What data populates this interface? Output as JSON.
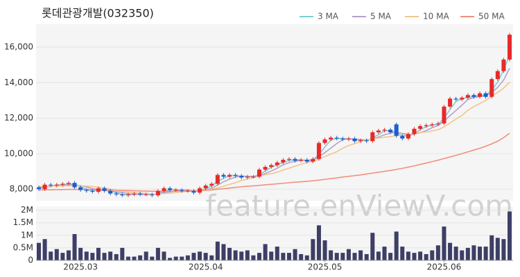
{
  "chart_data": [
    {
      "type": "candlestick",
      "title": "롯데관광개발(032350)",
      "watermark": "feature.enViewV.com",
      "up_color": "#e8292a",
      "down_color": "#1c5fcc",
      "legend": "top-right",
      "grid": true,
      "ylim": [
        7340,
        17290
      ],
      "yticks": [
        {
          "value": 8000,
          "label": "8,000"
        },
        {
          "value": 10000,
          "label": "10,000"
        },
        {
          "value": 12000,
          "label": "12,000"
        },
        {
          "value": 14000,
          "label": "14,000"
        },
        {
          "value": 16000,
          "label": "16,000"
        }
      ],
      "categories": [
        null,
        null,
        null,
        null,
        null,
        null,
        null,
        "2025.03",
        null,
        null,
        null,
        null,
        null,
        null,
        null,
        null,
        null,
        null,
        null,
        null,
        null,
        null,
        null,
        null,
        null,
        null,
        null,
        null,
        "2025.04",
        null,
        null,
        null,
        null,
        null,
        null,
        null,
        null,
        null,
        null,
        null,
        null,
        null,
        null,
        null,
        null,
        null,
        null,
        null,
        "2025.05",
        null,
        null,
        null,
        null,
        null,
        null,
        null,
        null,
        null,
        null,
        null,
        null,
        null,
        null,
        null,
        null,
        null,
        null,
        null,
        "2025.06",
        null,
        null,
        null,
        null,
        null,
        null,
        null,
        null,
        null,
        null,
        null
      ],
      "open": [
        8100,
        8000,
        8250,
        8200,
        8250,
        8300,
        8350,
        8100,
        7950,
        7900,
        7850,
        8050,
        7900,
        7750,
        7700,
        7650,
        7700,
        7750,
        7700,
        7700,
        7650,
        7900,
        8050,
        7950,
        7950,
        7900,
        7900,
        7800,
        8050,
        8200,
        8300,
        8800,
        8700,
        8800,
        8750,
        8650,
        8700,
        8700,
        9100,
        9250,
        9350,
        9500,
        9650,
        9700,
        9600,
        9650,
        9550,
        9700,
        10600,
        10800,
        10900,
        10850,
        10800,
        10850,
        10700,
        10750,
        10700,
        11200,
        11300,
        11350,
        11650,
        11000,
        10850,
        11100,
        11400,
        11550,
        11600,
        11650,
        11700,
        12650,
        13100,
        13050,
        13150,
        13300,
        13200,
        13400,
        13200,
        14200,
        14650,
        15300
      ],
      "high": [
        8200,
        8350,
        8350,
        8350,
        8400,
        8450,
        8450,
        8200,
        8050,
        8000,
        8150,
        8150,
        8000,
        7850,
        7800,
        7800,
        7850,
        7850,
        7800,
        7800,
        8000,
        8150,
        8150,
        8050,
        8050,
        8000,
        8000,
        8150,
        8300,
        8400,
        8900,
        8900,
        8900,
        8900,
        8850,
        8800,
        8800,
        9200,
        9350,
        9450,
        9600,
        9750,
        9800,
        9800,
        9750,
        9750,
        9800,
        10700,
        10900,
        11000,
        11000,
        10950,
        10950,
        10950,
        10850,
        10850,
        11300,
        11400,
        11450,
        11450,
        11750,
        11100,
        11200,
        11500,
        11650,
        11700,
        11750,
        11800,
        12750,
        13200,
        13200,
        13250,
        13400,
        13400,
        13500,
        13500,
        14300,
        14750,
        15400,
        16800
      ],
      "low": [
        7900,
        7900,
        8100,
        8100,
        8150,
        8200,
        8000,
        7850,
        7800,
        7750,
        7750,
        7800,
        7650,
        7600,
        7550,
        7550,
        7600,
        7600,
        7600,
        7550,
        7550,
        7800,
        7850,
        7850,
        7800,
        7800,
        7700,
        7700,
        7950,
        8100,
        8200,
        8600,
        8600,
        8650,
        8550,
        8550,
        8600,
        8600,
        9000,
        9150,
        9250,
        9400,
        9550,
        9500,
        9500,
        9450,
        9450,
        9600,
        10500,
        10700,
        10750,
        10700,
        10700,
        10600,
        10600,
        10600,
        10600,
        11100,
        11200,
        11100,
        10900,
        10750,
        10750,
        11000,
        11300,
        11450,
        11500,
        11550,
        11600,
        12550,
        12950,
        12950,
        13050,
        13100,
        13100,
        13100,
        13100,
        14100,
        14550,
        15200
      ],
      "close": [
        8000,
        8250,
        8200,
        8250,
        8300,
        8350,
        8100,
        7950,
        7900,
        7850,
        8050,
        7900,
        7750,
        7700,
        7650,
        7700,
        7750,
        7700,
        7700,
        7650,
        7900,
        8050,
        7950,
        7950,
        7900,
        7900,
        7800,
        8050,
        8200,
        8300,
        8800,
        8700,
        8800,
        8750,
        8650,
        8700,
        8700,
        9100,
        9250,
        9350,
        9500,
        9650,
        9700,
        9600,
        9650,
        9550,
        9700,
        10600,
        10800,
        10900,
        10850,
        10800,
        10850,
        10700,
        10750,
        10700,
        11200,
        11300,
        11350,
        11200,
        11000,
        10850,
        11100,
        11400,
        11550,
        11600,
        11650,
        11700,
        12650,
        13100,
        13050,
        13150,
        13300,
        13200,
        13400,
        13200,
        14200,
        14650,
        15300,
        16700
      ],
      "series": [
        {
          "name": "3 MA",
          "color": "#7ccfcf",
          "values": [
            8050,
            8100,
            8150,
            8233,
            8250,
            8300,
            8250,
            8133,
            7983,
            7900,
            7933,
            7933,
            7900,
            7783,
            7700,
            7683,
            7700,
            7717,
            7717,
            7683,
            7750,
            7867,
            7967,
            7983,
            7933,
            7917,
            7867,
            7917,
            8017,
            8183,
            8433,
            8600,
            8767,
            8750,
            8733,
            8700,
            8683,
            8833,
            9017,
            9233,
            9367,
            9500,
            9617,
            9650,
            9650,
            9600,
            9633,
            9950,
            10367,
            10767,
            10850,
            10850,
            10833,
            10783,
            10767,
            10717,
            10883,
            11067,
            11283,
            11283,
            11183,
            11017,
            10983,
            11117,
            11350,
            11517,
            11600,
            11650,
            12000,
            12483,
            12933,
            13100,
            13167,
            13217,
            13300,
            13267,
            13600,
            14017,
            14717,
            15550
          ]
        },
        {
          "name": "5 MA",
          "color": "#b4a0cc",
          "values": [
            8100,
            8120,
            8150,
            8180,
            8200,
            8270,
            8240,
            8190,
            8120,
            8030,
            7970,
            7930,
            7890,
            7850,
            7810,
            7740,
            7710,
            7700,
            7700,
            7700,
            7740,
            7800,
            7850,
            7900,
            7950,
            7950,
            7900,
            7920,
            7970,
            8050,
            8230,
            8410,
            8560,
            8670,
            8740,
            8720,
            8720,
            8780,
            8880,
            9020,
            9180,
            9370,
            9490,
            9560,
            9620,
            9630,
            9640,
            9820,
            10060,
            10310,
            10570,
            10790,
            10840,
            10820,
            10790,
            10760,
            10840,
            10930,
            11060,
            11150,
            11210,
            11140,
            11100,
            11110,
            11180,
            11300,
            11460,
            11580,
            11830,
            12140,
            12430,
            12730,
            13050,
            13160,
            13220,
            13250,
            13460,
            13730,
            14150,
            14810
          ]
        },
        {
          "name": "10 MA",
          "color": "#f2c48e",
          "values": [
            8150,
            8150,
            8160,
            8170,
            8180,
            8190,
            8190,
            8180,
            8170,
            8150,
            8105,
            8060,
            8005,
            7940,
            7890,
            7835,
            7800,
            7775,
            7755,
            7720,
            7725,
            7750,
            7775,
            7800,
            7845,
            7875,
            7875,
            7910,
            7960,
            8000,
            8065,
            8165,
            8265,
            8360,
            8485,
            8565,
            8640,
            8725,
            8810,
            8870,
            8950,
            9075,
            9185,
            9290,
            9400,
            9500,
            9565,
            9690,
            9840,
            9970,
            10105,
            10305,
            10450,
            10565,
            10680,
            10775,
            10840,
            10875,
            10925,
            10955,
            11025,
            11035,
            11080,
            11130,
            11195,
            11220,
            11280,
            11345,
            11505,
            11720,
            11945,
            12155,
            12440,
            12650,
            12825,
            12990,
            13255,
            13445,
            13685,
            14030
          ]
        },
        {
          "name": "50 MA",
          "color": "#f2907c",
          "values": [
            7950,
            7960,
            7960,
            7970,
            7970,
            7980,
            7980,
            7980,
            7980,
            7970,
            7970,
            7960,
            7950,
            7940,
            7930,
            7920,
            7910,
            7900,
            7890,
            7880,
            7880,
            7880,
            7880,
            7890,
            7890,
            7900,
            7900,
            7910,
            7930,
            7950,
            7990,
            8020,
            8060,
            8100,
            8130,
            8160,
            8180,
            8210,
            8240,
            8270,
            8300,
            8330,
            8360,
            8390,
            8410,
            8440,
            8470,
            8510,
            8550,
            8590,
            8630,
            8680,
            8720,
            8760,
            8800,
            8850,
            8900,
            8950,
            9000,
            9050,
            9110,
            9170,
            9240,
            9310,
            9390,
            9470,
            9550,
            9630,
            9720,
            9810,
            9900,
            10000,
            10100,
            10200,
            10300,
            10420,
            10550,
            10700,
            10900,
            11150
          ]
        }
      ]
    },
    {
      "type": "bar",
      "color": "#3d3f66",
      "ylim": [
        0,
        2100000
      ],
      "yticks": [
        0,
        {
          "value": 500000,
          "label": "0.5M"
        },
        {
          "value": 1000000,
          "label": "1M"
        },
        {
          "value": 1500000,
          "label": "1.5M"
        },
        {
          "value": 2000000,
          "label": "2M"
        }
      ],
      "values": [
        700000,
        850000,
        350000,
        450000,
        300000,
        400000,
        1050000,
        500000,
        350000,
        300000,
        500000,
        300000,
        350000,
        250000,
        500000,
        150000,
        150000,
        200000,
        350000,
        150000,
        500000,
        350000,
        100000,
        150000,
        150000,
        200000,
        300000,
        350000,
        300000,
        200000,
        750000,
        650000,
        500000,
        400000,
        350000,
        400000,
        200000,
        300000,
        650000,
        350000,
        550000,
        300000,
        300000,
        450000,
        250000,
        200000,
        850000,
        1400000,
        800000,
        400000,
        300000,
        300000,
        450000,
        300000,
        400000,
        250000,
        1100000,
        350000,
        550000,
        300000,
        1150000,
        550000,
        350000,
        300000,
        350000,
        250000,
        400000,
        600000,
        1350000,
        700000,
        550000,
        400000,
        500000,
        600000,
        550000,
        550000,
        1000000,
        900000,
        850000,
        1950000
      ]
    }
  ]
}
